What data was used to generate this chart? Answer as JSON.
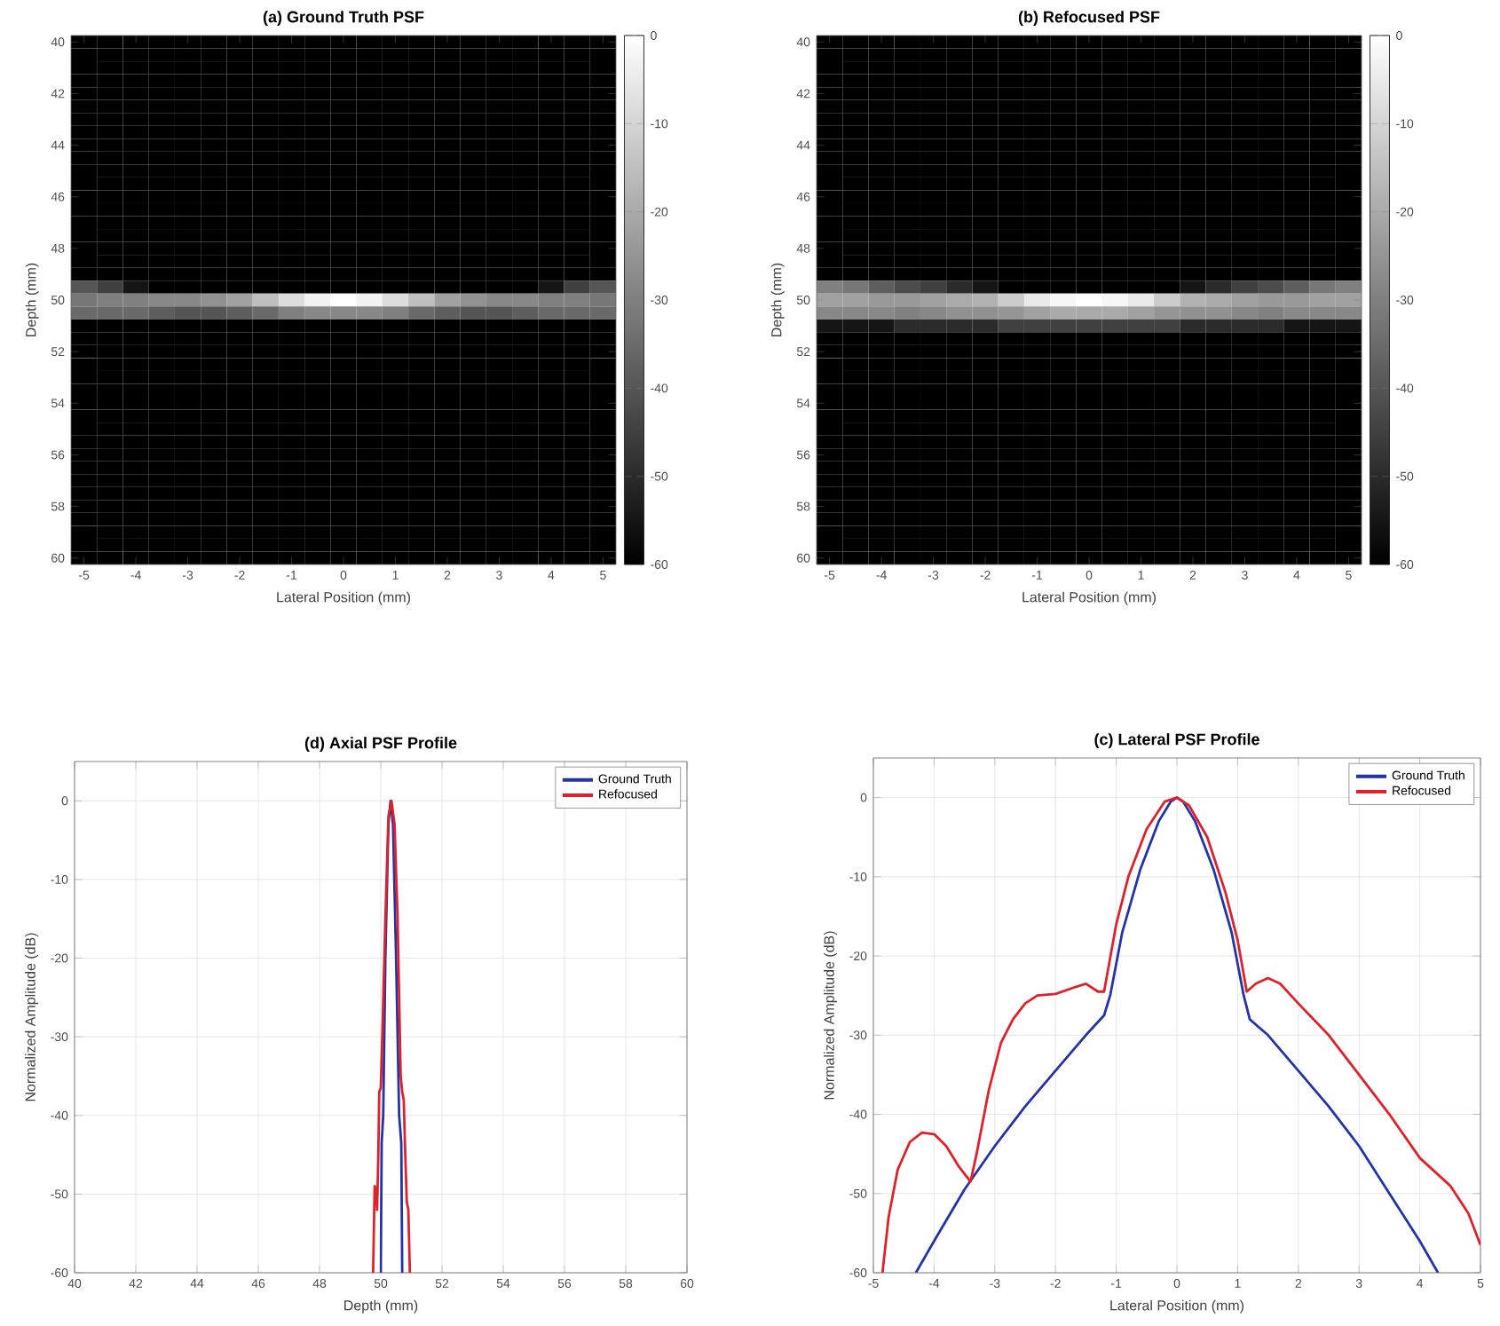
{
  "chart_data": [
    {
      "type": "heatmap",
      "title": "(a) Ground Truth PSF",
      "xlabel": "Lateral Position (mm)",
      "ylabel": "Depth (mm)",
      "categories": [
        "-5",
        null,
        "-4",
        null,
        "-3",
        null,
        "-2",
        null,
        "-1",
        null,
        "0",
        null,
        "1",
        null,
        "2",
        null,
        "3",
        null,
        "4",
        null,
        "5"
      ],
      "y_categories": [
        "40",
        null,
        null,
        null,
        "42",
        null,
        null,
        null,
        "44",
        null,
        null,
        null,
        "46",
        null,
        null,
        null,
        "48",
        null,
        null,
        null,
        "50",
        null,
        null,
        null,
        "52",
        null,
        null,
        null,
        "54",
        null,
        null,
        null,
        "56",
        null,
        null,
        null,
        "58",
        null,
        null,
        null,
        "60"
      ],
      "clim": [
        -60,
        0
      ],
      "cticks": [
        0,
        -10,
        -20,
        -30,
        -40,
        -50,
        -60
      ],
      "cells": [
        [
          -60,
          -60,
          -60,
          -60,
          -60,
          -60,
          -60,
          -60,
          -60,
          -60,
          -60,
          -60,
          -60,
          -60,
          -60,
          -60,
          -60,
          -60,
          -60,
          -60,
          -60
        ],
        [
          -60,
          -60,
          -60,
          -60,
          -60,
          -60,
          -60,
          -60,
          -60,
          -60,
          -60,
          -60,
          -60,
          -60,
          -60,
          -60,
          -60,
          -60,
          -60,
          -60,
          -60
        ],
        [
          -60,
          -60,
          -60,
          -60,
          -60,
          -60,
          -60,
          -60,
          -60,
          -60,
          -60,
          -60,
          -60,
          -60,
          -60,
          -60,
          -60,
          -60,
          -60,
          -60,
          -60
        ],
        [
          -60,
          -60,
          -60,
          -60,
          -60,
          -60,
          -60,
          -60,
          -60,
          -60,
          -60,
          -60,
          -60,
          -60,
          -60,
          -60,
          -60,
          -60,
          -60,
          -60,
          -60
        ],
        [
          -60,
          -60,
          -60,
          -60,
          -60,
          -60,
          -60,
          -60,
          -60,
          -60,
          -60,
          -60,
          -60,
          -60,
          -60,
          -60,
          -60,
          -60,
          -60,
          -60,
          -60
        ],
        [
          -60,
          -60,
          -60,
          -60,
          -60,
          -60,
          -60,
          -60,
          -60,
          -60,
          -60,
          -60,
          -60,
          -60,
          -60,
          -60,
          -60,
          -60,
          -60,
          -60,
          -60
        ],
        [
          -60,
          -60,
          -60,
          -60,
          -60,
          -60,
          -60,
          -60,
          -60,
          -60,
          -60,
          -60,
          -60,
          -60,
          -60,
          -60,
          -60,
          -60,
          -60,
          -60,
          -60
        ],
        [
          -60,
          -60,
          -60,
          -60,
          -60,
          -60,
          -60,
          -60,
          -60,
          -60,
          -60,
          -60,
          -60,
          -60,
          -60,
          -60,
          -60,
          -60,
          -60,
          -60,
          -60
        ],
        [
          -60,
          -60,
          -60,
          -60,
          -60,
          -60,
          -60,
          -60,
          -60,
          -60,
          -60,
          -60,
          -60,
          -60,
          -60,
          -60,
          -60,
          -60,
          -60,
          -60,
          -60
        ],
        [
          -60,
          -60,
          -60,
          -60,
          -60,
          -60,
          -60,
          -60,
          -60,
          -60,
          -60,
          -60,
          -60,
          -60,
          -60,
          -60,
          -60,
          -60,
          -60,
          -60,
          -60
        ],
        [
          -60,
          -60,
          -60,
          -60,
          -60,
          -60,
          -60,
          -60,
          -60,
          -60,
          -60,
          -60,
          -60,
          -60,
          -60,
          -60,
          -60,
          -60,
          -60,
          -60,
          -60
        ],
        [
          -60,
          -60,
          -60,
          -60,
          -60,
          -60,
          -60,
          -60,
          -60,
          -60,
          -60,
          -60,
          -60,
          -60,
          -60,
          -60,
          -60,
          -60,
          -60,
          -60,
          -60
        ],
        [
          -60,
          -60,
          -60,
          -60,
          -60,
          -60,
          -60,
          -60,
          -60,
          -60,
          -60,
          -60,
          -60,
          -60,
          -60,
          -60,
          -60,
          -60,
          -60,
          -60,
          -60
        ],
        [
          -60,
          -60,
          -60,
          -60,
          -60,
          -60,
          -60,
          -60,
          -60,
          -60,
          -60,
          -60,
          -60,
          -60,
          -60,
          -60,
          -60,
          -60,
          -60,
          -60,
          -60
        ],
        [
          -60,
          -60,
          -60,
          -60,
          -60,
          -60,
          -60,
          -60,
          -60,
          -60,
          -60,
          -60,
          -60,
          -60,
          -60,
          -60,
          -60,
          -60,
          -60,
          -60,
          -60
        ],
        [
          -60,
          -60,
          -60,
          -60,
          -60,
          -60,
          -60,
          -60,
          -60,
          -60,
          -60,
          -60,
          -60,
          -60,
          -60,
          -60,
          -60,
          -60,
          -60,
          -60,
          -60
        ],
        [
          -60,
          -60,
          -60,
          -60,
          -60,
          -60,
          -60,
          -60,
          -60,
          -60,
          -60,
          -60,
          -60,
          -60,
          -60,
          -60,
          -60,
          -60,
          -60,
          -60,
          -60
        ],
        [
          -60,
          -60,
          -60,
          -60,
          -60,
          -60,
          -60,
          -60,
          -60,
          -60,
          -60,
          -60,
          -60,
          -60,
          -60,
          -60,
          -60,
          -60,
          -60,
          -60,
          -60
        ],
        [
          -60,
          -60,
          -60,
          -60,
          -60,
          -60,
          -60,
          -60,
          -60,
          -60,
          -60,
          -60,
          -60,
          -60,
          -60,
          -60,
          -60,
          -60,
          -60,
          -60,
          -60
        ],
        [
          -40,
          -45,
          -55,
          -60,
          -60,
          -60,
          -60,
          -60,
          -60,
          -60,
          -60,
          -60,
          -60,
          -60,
          -60,
          -60,
          -60,
          -60,
          -55,
          -45,
          -40
        ],
        [
          -32,
          -30,
          -30,
          -28,
          -28,
          -26,
          -22,
          -15,
          -8,
          -3,
          0,
          -3,
          -8,
          -15,
          -22,
          -26,
          -28,
          -28,
          -30,
          -30,
          -32
        ],
        [
          -35,
          -35,
          -35,
          -38,
          -40,
          -40,
          -38,
          -35,
          -30,
          -28,
          -28,
          -28,
          -30,
          -35,
          -38,
          -40,
          -40,
          -38,
          -35,
          -35,
          -35
        ],
        [
          -60,
          -60,
          -60,
          -60,
          -60,
          -60,
          -60,
          -60,
          -60,
          -60,
          -60,
          -60,
          -60,
          -60,
          -60,
          -60,
          -60,
          -60,
          -60,
          -60,
          -60
        ],
        [
          -60,
          -60,
          -60,
          -60,
          -60,
          -60,
          -60,
          -60,
          -60,
          -60,
          -60,
          -60,
          -60,
          -60,
          -60,
          -60,
          -60,
          -60,
          -60,
          -60,
          -60
        ],
        [
          -60,
          -60,
          -60,
          -60,
          -60,
          -60,
          -60,
          -60,
          -60,
          -60,
          -60,
          -60,
          -60,
          -60,
          -60,
          -60,
          -60,
          -60,
          -60,
          -60,
          -60
        ],
        [
          -60,
          -60,
          -60,
          -60,
          -60,
          -60,
          -60,
          -60,
          -60,
          -60,
          -60,
          -60,
          -60,
          -60,
          -60,
          -60,
          -60,
          -60,
          -60,
          -60,
          -60
        ],
        [
          -60,
          -60,
          -60,
          -60,
          -60,
          -60,
          -60,
          -60,
          -60,
          -60,
          -60,
          -60,
          -60,
          -60,
          -60,
          -60,
          -60,
          -60,
          -60,
          -60,
          -60
        ],
        [
          -60,
          -60,
          -60,
          -60,
          -60,
          -60,
          -60,
          -60,
          -60,
          -60,
          -60,
          -60,
          -60,
          -60,
          -60,
          -60,
          -60,
          -60,
          -60,
          -60,
          -60
        ],
        [
          -60,
          -60,
          -60,
          -60,
          -60,
          -60,
          -60,
          -60,
          -60,
          -60,
          -60,
          -60,
          -60,
          -60,
          -60,
          -60,
          -60,
          -60,
          -60,
          -60,
          -60
        ],
        [
          -60,
          -60,
          -60,
          -60,
          -60,
          -60,
          -60,
          -60,
          -60,
          -60,
          -60,
          -60,
          -60,
          -60,
          -60,
          -60,
          -60,
          -60,
          -60,
          -60,
          -60
        ],
        [
          -60,
          -60,
          -60,
          -60,
          -60,
          -60,
          -60,
          -60,
          -60,
          -60,
          -60,
          -60,
          -60,
          -60,
          -60,
          -60,
          -60,
          -60,
          -60,
          -60,
          -60
        ],
        [
          -60,
          -60,
          -60,
          -60,
          -60,
          -60,
          -60,
          -60,
          -60,
          -60,
          -60,
          -60,
          -60,
          -60,
          -60,
          -60,
          -60,
          -60,
          -60,
          -60,
          -60
        ],
        [
          -60,
          -60,
          -60,
          -60,
          -60,
          -60,
          -60,
          -60,
          -60,
          -60,
          -60,
          -60,
          -60,
          -60,
          -60,
          -60,
          -60,
          -60,
          -60,
          -60,
          -60
        ],
        [
          -60,
          -60,
          -60,
          -60,
          -60,
          -60,
          -60,
          -60,
          -60,
          -60,
          -60,
          -60,
          -60,
          -60,
          -60,
          -60,
          -60,
          -60,
          -60,
          -60,
          -60
        ],
        [
          -60,
          -60,
          -60,
          -60,
          -60,
          -60,
          -60,
          -60,
          -60,
          -60,
          -60,
          -60,
          -60,
          -60,
          -60,
          -60,
          -60,
          -60,
          -60,
          -60,
          -60
        ],
        [
          -60,
          -60,
          -60,
          -60,
          -60,
          -60,
          -60,
          -60,
          -60,
          -60,
          -60,
          -60,
          -60,
          -60,
          -60,
          -60,
          -60,
          -60,
          -60,
          -60,
          -60
        ],
        [
          -60,
          -60,
          -60,
          -60,
          -60,
          -60,
          -60,
          -60,
          -60,
          -60,
          -60,
          -60,
          -60,
          -60,
          -60,
          -60,
          -60,
          -60,
          -60,
          -60,
          -60
        ],
        [
          -60,
          -60,
          -60,
          -60,
          -60,
          -60,
          -60,
          -60,
          -60,
          -60,
          -60,
          -60,
          -60,
          -60,
          -60,
          -60,
          -60,
          -60,
          -60,
          -60,
          -60
        ],
        [
          -60,
          -60,
          -60,
          -60,
          -60,
          -60,
          -60,
          -60,
          -60,
          -60,
          -60,
          -60,
          -60,
          -60,
          -60,
          -60,
          -60,
          -60,
          -60,
          -60,
          -60
        ],
        [
          -60,
          -60,
          -60,
          -60,
          -60,
          -60,
          -60,
          -60,
          -60,
          -60,
          -60,
          -60,
          -60,
          -60,
          -60,
          -60,
          -60,
          -60,
          -60,
          -60,
          -60
        ],
        [
          -60,
          -60,
          -60,
          -60,
          -60,
          -60,
          -60,
          -60,
          -60,
          -60,
          -60,
          -60,
          -60,
          -60,
          -60,
          -60,
          -60,
          -60,
          -60,
          -60,
          -60
        ]
      ]
    },
    {
      "type": "heatmap",
      "title": "(b) Refocused PSF",
      "xlabel": "Lateral Position (mm)",
      "ylabel": "Depth (mm)",
      "categories": [
        "-5",
        null,
        "-4",
        null,
        "-3",
        null,
        "-2",
        null,
        "-1",
        null,
        "0",
        null,
        "1",
        null,
        "2",
        null,
        "3",
        null,
        "4",
        null,
        "5"
      ],
      "y_categories": [
        "40",
        null,
        null,
        null,
        "42",
        null,
        null,
        null,
        "44",
        null,
        null,
        null,
        "46",
        null,
        null,
        null,
        "48",
        null,
        null,
        null,
        "50",
        null,
        null,
        null,
        "52",
        null,
        null,
        null,
        "54",
        null,
        null,
        null,
        "56",
        null,
        null,
        null,
        "58",
        null,
        null,
        null,
        "60"
      ],
      "clim": [
        -60,
        0
      ],
      "cticks": [
        0,
        -10,
        -20,
        -30,
        -40,
        -50,
        -60
      ],
      "cells": [
        [
          -60,
          -60,
          -60,
          -60,
          -60,
          -60,
          -60,
          -60,
          -60,
          -60,
          -60,
          -60,
          -60,
          -60,
          -60,
          -60,
          -60,
          -60,
          -60,
          -60,
          -60
        ],
        [
          -60,
          -60,
          -60,
          -60,
          -60,
          -60,
          -60,
          -60,
          -60,
          -60,
          -60,
          -60,
          -60,
          -60,
          -60,
          -60,
          -60,
          -60,
          -60,
          -60,
          -60
        ],
        [
          -60,
          -60,
          -60,
          -60,
          -60,
          -60,
          -60,
          -60,
          -60,
          -60,
          -60,
          -60,
          -60,
          -60,
          -60,
          -60,
          -60,
          -60,
          -60,
          -60,
          -60
        ],
        [
          -60,
          -60,
          -60,
          -60,
          -60,
          -60,
          -60,
          -60,
          -60,
          -60,
          -60,
          -60,
          -60,
          -60,
          -60,
          -60,
          -60,
          -60,
          -60,
          -60,
          -60
        ],
        [
          -60,
          -60,
          -60,
          -60,
          -60,
          -60,
          -60,
          -60,
          -60,
          -60,
          -60,
          -60,
          -60,
          -60,
          -60,
          -60,
          -60,
          -60,
          -60,
          -60,
          -60
        ],
        [
          -60,
          -60,
          -60,
          -60,
          -60,
          -60,
          -60,
          -60,
          -60,
          -60,
          -60,
          -60,
          -60,
          -60,
          -60,
          -60,
          -60,
          -60,
          -60,
          -60,
          -60
        ],
        [
          -60,
          -60,
          -60,
          -60,
          -60,
          -60,
          -60,
          -60,
          -60,
          -60,
          -60,
          -60,
          -60,
          -60,
          -60,
          -60,
          -60,
          -60,
          -60,
          -60,
          -60
        ],
        [
          -60,
          -60,
          -60,
          -60,
          -60,
          -60,
          -60,
          -60,
          -60,
          -60,
          -60,
          -60,
          -60,
          -60,
          -60,
          -60,
          -60,
          -60,
          -60,
          -60,
          -60
        ],
        [
          -60,
          -60,
          -60,
          -60,
          -60,
          -60,
          -60,
          -60,
          -60,
          -60,
          -60,
          -60,
          -60,
          -60,
          -60,
          -60,
          -60,
          -60,
          -60,
          -60,
          -60
        ],
        [
          -60,
          -60,
          -60,
          -60,
          -60,
          -60,
          -60,
          -60,
          -60,
          -60,
          -60,
          -60,
          -60,
          -60,
          -60,
          -60,
          -60,
          -60,
          -60,
          -60,
          -60
        ],
        [
          -60,
          -60,
          -60,
          -60,
          -60,
          -60,
          -60,
          -60,
          -60,
          -60,
          -60,
          -60,
          -60,
          -60,
          -60,
          -60,
          -60,
          -60,
          -60,
          -60,
          -60
        ],
        [
          -60,
          -60,
          -60,
          -60,
          -60,
          -60,
          -60,
          -60,
          -60,
          -60,
          -60,
          -60,
          -60,
          -60,
          -60,
          -60,
          -60,
          -60,
          -60,
          -60,
          -60
        ],
        [
          -60,
          -60,
          -60,
          -60,
          -60,
          -60,
          -60,
          -60,
          -60,
          -60,
          -60,
          -60,
          -60,
          -60,
          -60,
          -60,
          -60,
          -60,
          -60,
          -60,
          -60
        ],
        [
          -60,
          -60,
          -60,
          -60,
          -60,
          -60,
          -60,
          -60,
          -60,
          -60,
          -60,
          -60,
          -60,
          -60,
          -60,
          -60,
          -60,
          -60,
          -60,
          -60,
          -60
        ],
        [
          -60,
          -60,
          -60,
          -60,
          -60,
          -60,
          -60,
          -60,
          -60,
          -60,
          -60,
          -60,
          -60,
          -60,
          -60,
          -60,
          -60,
          -60,
          -60,
          -60,
          -60
        ],
        [
          -60,
          -60,
          -60,
          -60,
          -60,
          -60,
          -60,
          -60,
          -60,
          -60,
          -60,
          -60,
          -60,
          -60,
          -60,
          -60,
          -60,
          -60,
          -60,
          -60,
          -60
        ],
        [
          -60,
          -60,
          -60,
          -60,
          -60,
          -60,
          -60,
          -60,
          -60,
          -60,
          -60,
          -60,
          -60,
          -60,
          -60,
          -60,
          -60,
          -60,
          -60,
          -60,
          -60
        ],
        [
          -60,
          -60,
          -60,
          -60,
          -60,
          -60,
          -60,
          -60,
          -60,
          -60,
          -60,
          -60,
          -60,
          -60,
          -60,
          -60,
          -60,
          -60,
          -60,
          -60,
          -60
        ],
        [
          -60,
          -60,
          -60,
          -60,
          -60,
          -60,
          -60,
          -60,
          -60,
          -60,
          -60,
          -60,
          -60,
          -60,
          -60,
          -60,
          -60,
          -60,
          -60,
          -60,
          -60
        ],
        [
          -30,
          -32,
          -38,
          -42,
          -45,
          -50,
          -55,
          -60,
          -60,
          -60,
          -60,
          -60,
          -60,
          -60,
          -55,
          -50,
          -45,
          -42,
          -38,
          -32,
          -30
        ],
        [
          -22,
          -22,
          -24,
          -24,
          -22,
          -20,
          -18,
          -12,
          -5,
          -2,
          0,
          -2,
          -5,
          -12,
          -18,
          -20,
          -22,
          -24,
          -24,
          -22,
          -22
        ],
        [
          -28,
          -28,
          -28,
          -30,
          -28,
          -26,
          -26,
          -25,
          -22,
          -20,
          -20,
          -20,
          -22,
          -25,
          -26,
          -26,
          -28,
          -30,
          -28,
          -28,
          -28
        ],
        [
          -55,
          -55,
          -55,
          -50,
          -50,
          -50,
          -50,
          -45,
          -45,
          -45,
          -45,
          -45,
          -45,
          -45,
          -50,
          -50,
          -50,
          -50,
          -55,
          -55,
          -55
        ],
        [
          -60,
          -60,
          -60,
          -60,
          -60,
          -60,
          -60,
          -60,
          -60,
          -60,
          -60,
          -60,
          -60,
          -60,
          -60,
          -60,
          -60,
          -60,
          -60,
          -60,
          -60
        ],
        [
          -60,
          -60,
          -60,
          -60,
          -60,
          -60,
          -60,
          -60,
          -60,
          -60,
          -60,
          -60,
          -60,
          -60,
          -60,
          -60,
          -60,
          -60,
          -60,
          -60,
          -60
        ],
        [
          -60,
          -60,
          -60,
          -60,
          -60,
          -60,
          -60,
          -60,
          -60,
          -60,
          -60,
          -60,
          -60,
          -60,
          -60,
          -60,
          -60,
          -60,
          -60,
          -60,
          -60
        ],
        [
          -60,
          -60,
          -60,
          -60,
          -60,
          -60,
          -60,
          -60,
          -60,
          -60,
          -60,
          -60,
          -60,
          -60,
          -60,
          -60,
          -60,
          -60,
          -60,
          -60,
          -60
        ],
        [
          -60,
          -60,
          -60,
          -60,
          -60,
          -60,
          -60,
          -60,
          -60,
          -60,
          -60,
          -60,
          -60,
          -60,
          -60,
          -60,
          -60,
          -60,
          -60,
          -60,
          -60
        ],
        [
          -60,
          -60,
          -60,
          -60,
          -60,
          -60,
          -60,
          -60,
          -60,
          -60,
          -60,
          -60,
          -60,
          -60,
          -60,
          -60,
          -60,
          -60,
          -60,
          -60,
          -60
        ],
        [
          -60,
          -60,
          -60,
          -60,
          -60,
          -60,
          -60,
          -60,
          -60,
          -60,
          -60,
          -60,
          -60,
          -60,
          -60,
          -60,
          -60,
          -60,
          -60,
          -60,
          -60
        ],
        [
          -60,
          -60,
          -60,
          -60,
          -60,
          -60,
          -60,
          -60,
          -60,
          -60,
          -60,
          -60,
          -60,
          -60,
          -60,
          -60,
          -60,
          -60,
          -60,
          -60,
          -60
        ],
        [
          -60,
          -60,
          -60,
          -60,
          -60,
          -60,
          -60,
          -60,
          -60,
          -60,
          -60,
          -60,
          -60,
          -60,
          -60,
          -60,
          -60,
          -60,
          -60,
          -60,
          -60
        ],
        [
          -60,
          -60,
          -60,
          -60,
          -60,
          -60,
          -60,
          -60,
          -60,
          -60,
          -60,
          -60,
          -60,
          -60,
          -60,
          -60,
          -60,
          -60,
          -60,
          -60,
          -60
        ],
        [
          -60,
          -60,
          -60,
          -60,
          -60,
          -60,
          -60,
          -60,
          -60,
          -60,
          -60,
          -60,
          -60,
          -60,
          -60,
          -60,
          -60,
          -60,
          -60,
          -60,
          -60
        ],
        [
          -60,
          -60,
          -60,
          -60,
          -60,
          -60,
          -60,
          -60,
          -60,
          -60,
          -60,
          -60,
          -60,
          -60,
          -60,
          -60,
          -60,
          -60,
          -60,
          -60,
          -60
        ],
        [
          -60,
          -60,
          -60,
          -60,
          -60,
          -60,
          -60,
          -60,
          -60,
          -60,
          -60,
          -60,
          -60,
          -60,
          -60,
          -60,
          -60,
          -60,
          -60,
          -60,
          -60
        ],
        [
          -60,
          -60,
          -60,
          -60,
          -60,
          -60,
          -60,
          -60,
          -60,
          -60,
          -60,
          -60,
          -60,
          -60,
          -60,
          -60,
          -60,
          -60,
          -60,
          -60,
          -60
        ],
        [
          -60,
          -60,
          -60,
          -60,
          -60,
          -60,
          -60,
          -60,
          -60,
          -60,
          -60,
          -60,
          -60,
          -60,
          -60,
          -60,
          -60,
          -60,
          -60,
          -60,
          -60
        ],
        [
          -60,
          -60,
          -60,
          -60,
          -60,
          -60,
          -60,
          -60,
          -60,
          -60,
          -60,
          -60,
          -60,
          -60,
          -60,
          -60,
          -60,
          -60,
          -60,
          -60,
          -60
        ],
        [
          -60,
          -60,
          -60,
          -60,
          -60,
          -60,
          -60,
          -60,
          -60,
          -60,
          -60,
          -60,
          -60,
          -60,
          -60,
          -60,
          -60,
          -60,
          -60,
          -60,
          -60
        ],
        [
          -60,
          -60,
          -60,
          -60,
          -60,
          -60,
          -60,
          -60,
          -60,
          -60,
          -60,
          -60,
          -60,
          -60,
          -60,
          -60,
          -60,
          -60,
          -60,
          -60,
          -60
        ]
      ]
    },
    {
      "type": "line",
      "title": "(d) Axial PSF Profile",
      "xlabel": "Depth (mm)",
      "ylabel": "Normalized Amplitude (dB)",
      "xlim": [
        40,
        60
      ],
      "xticks": [
        40,
        42,
        44,
        46,
        48,
        50,
        52,
        54,
        56,
        58,
        60
      ],
      "ylim": [
        -60,
        5
      ],
      "yticks": [
        -60,
        -50,
        -40,
        -30,
        -20,
        -10,
        0
      ],
      "grid": true,
      "legend": "top right",
      "series": [
        {
          "name": "Ground Truth",
          "color": "#2234a8",
          "x": [
            50.0,
            50.03,
            50.08,
            50.15,
            50.25,
            50.32,
            50.4,
            50.5,
            50.6,
            50.67,
            50.7
          ],
          "values": [
            -60,
            -43.5,
            -40,
            -20,
            -3,
            0,
            -3,
            -20,
            -40,
            -43.5,
            -60
          ]
        },
        {
          "name": "Refocused",
          "color": "#e0202a",
          "x": [
            49.75,
            49.8,
            49.85,
            49.88,
            49.92,
            49.95,
            50.0,
            50.05,
            50.15,
            50.25,
            50.35,
            50.45,
            50.55,
            50.65,
            50.7,
            50.75,
            50.8,
            50.85,
            50.9,
            50.95
          ],
          "values": [
            -60,
            -49,
            -49.5,
            -52,
            -45,
            -37,
            -36.5,
            -30,
            -15,
            -2,
            0,
            -3,
            -15,
            -35,
            -37,
            -38,
            -45,
            -51,
            -52,
            -60
          ]
        }
      ]
    },
    {
      "type": "line",
      "title": "(c) Lateral PSF Profile",
      "xlabel": "Lateral Position (mm)",
      "ylabel": "Normalized Amplitude (dB)",
      "xlim": [
        -5,
        5
      ],
      "xticks": [
        -5,
        -4,
        -3,
        -2,
        -1,
        0,
        1,
        2,
        3,
        4,
        5
      ],
      "ylim": [
        -60,
        5
      ],
      "yticks": [
        -60,
        -50,
        -40,
        -30,
        -20,
        -10,
        0
      ],
      "grid": true,
      "legend": "top right",
      "series": [
        {
          "name": "Ground Truth",
          "color": "#2234a8",
          "x": [
            -4.3,
            -4,
            -3.5,
            -3,
            -2.5,
            -2,
            -1.5,
            -1.2,
            -1.1,
            -0.9,
            -0.6,
            -0.3,
            -0.1,
            0,
            0.1,
            0.3,
            0.6,
            0.9,
            1.1,
            1.2,
            1.5,
            2,
            2.5,
            3,
            3.5,
            4,
            4.3
          ],
          "values": [
            -60,
            -56,
            -49.5,
            -44,
            -39,
            -34.5,
            -30,
            -27.5,
            -25,
            -17,
            -9,
            -3,
            -0.5,
            0,
            -0.5,
            -3,
            -9,
            -17,
            -25,
            -28,
            -30,
            -34.5,
            -39,
            -44,
            -50,
            -56,
            -60
          ]
        },
        {
          "name": "Refocused",
          "color": "#e0202a",
          "x": [
            -4.85,
            -4.75,
            -4.6,
            -4.4,
            -4.2,
            -4.0,
            -3.8,
            -3.6,
            -3.4,
            -3.3,
            -3.1,
            -2.9,
            -2.7,
            -2.5,
            -2.3,
            -2.0,
            -1.7,
            -1.5,
            -1.3,
            -1.2,
            -1.0,
            -0.8,
            -0.5,
            -0.2,
            0,
            0.2,
            0.5,
            0.8,
            1.0,
            1.15,
            1.3,
            1.5,
            1.7,
            2.0,
            2.5,
            3.0,
            3.5,
            4.0,
            4.5,
            4.8,
            5.0
          ],
          "values": [
            -60,
            -53,
            -47,
            -43.5,
            -42.3,
            -42.5,
            -44,
            -46.5,
            -48.5,
            -45,
            -37,
            -31,
            -28,
            -26,
            -25,
            -24.8,
            -24,
            -23.5,
            -24.5,
            -24.5,
            -16,
            -10,
            -4,
            -0.5,
            0,
            -1,
            -5,
            -12,
            -18,
            -24.5,
            -23.5,
            -22.8,
            -23.5,
            -26,
            -30,
            -35,
            -40,
            -45.5,
            -49,
            -52.5,
            -56.5
          ]
        }
      ]
    }
  ]
}
